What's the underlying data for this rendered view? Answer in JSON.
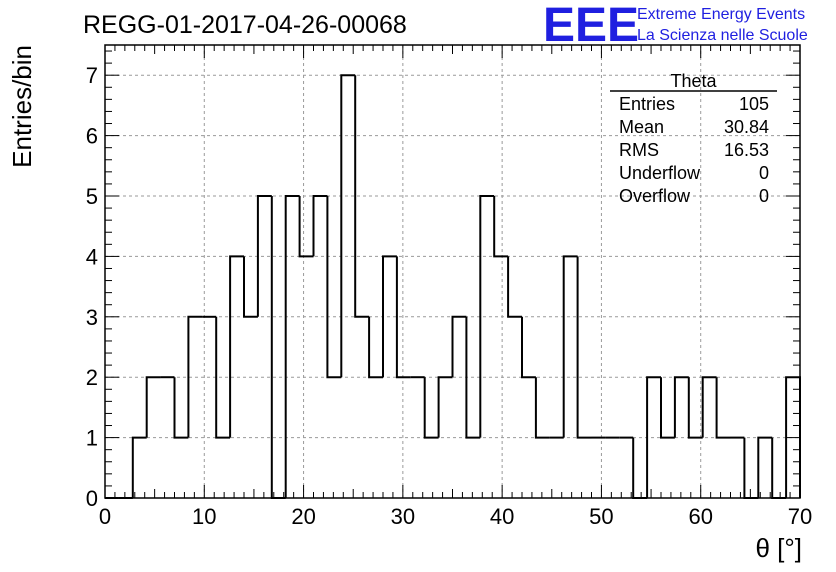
{
  "chart_data": {
    "type": "bar",
    "title": "REGG-01-2017-04-26-00068",
    "xlabel": "θ [°]",
    "ylabel": "Entries/bin",
    "xlim": [
      0,
      70
    ],
    "ylim": [
      0,
      7.5
    ],
    "xticks": [
      "0",
      "10",
      "20",
      "30",
      "40",
      "50",
      "60",
      "70"
    ],
    "yticks": [
      "0",
      "1",
      "2",
      "3",
      "4",
      "5",
      "6",
      "7"
    ],
    "grid": true,
    "bin_width": 1.4,
    "values": [
      0,
      0,
      1,
      2,
      2,
      1,
      3,
      3,
      1,
      4,
      3,
      5,
      0,
      5,
      4,
      5,
      2,
      7,
      3,
      2,
      4,
      2,
      2,
      1,
      2,
      3,
      1,
      5,
      4,
      3,
      2,
      1,
      1,
      4,
      1,
      1,
      1,
      1,
      0,
      2,
      1,
      2,
      1,
      2,
      1,
      1,
      0,
      1,
      0,
      2
    ],
    "stats": {
      "name": "Theta",
      "rows": [
        {
          "label": "Entries",
          "value": "105"
        },
        {
          "label": "Mean",
          "value": "30.84"
        },
        {
          "label": "RMS",
          "value": "16.53"
        },
        {
          "label": "Underflow",
          "value": "0"
        },
        {
          "label": "Overflow",
          "value": "0"
        }
      ]
    }
  },
  "logo": {
    "mark": "EEE",
    "line1": "Extreme Energy Events",
    "line2": "La Scienza nelle Scuole"
  },
  "colors": {
    "logo": "#1f1fe0",
    "grid": "#9a9a9a",
    "line": "#000000"
  }
}
